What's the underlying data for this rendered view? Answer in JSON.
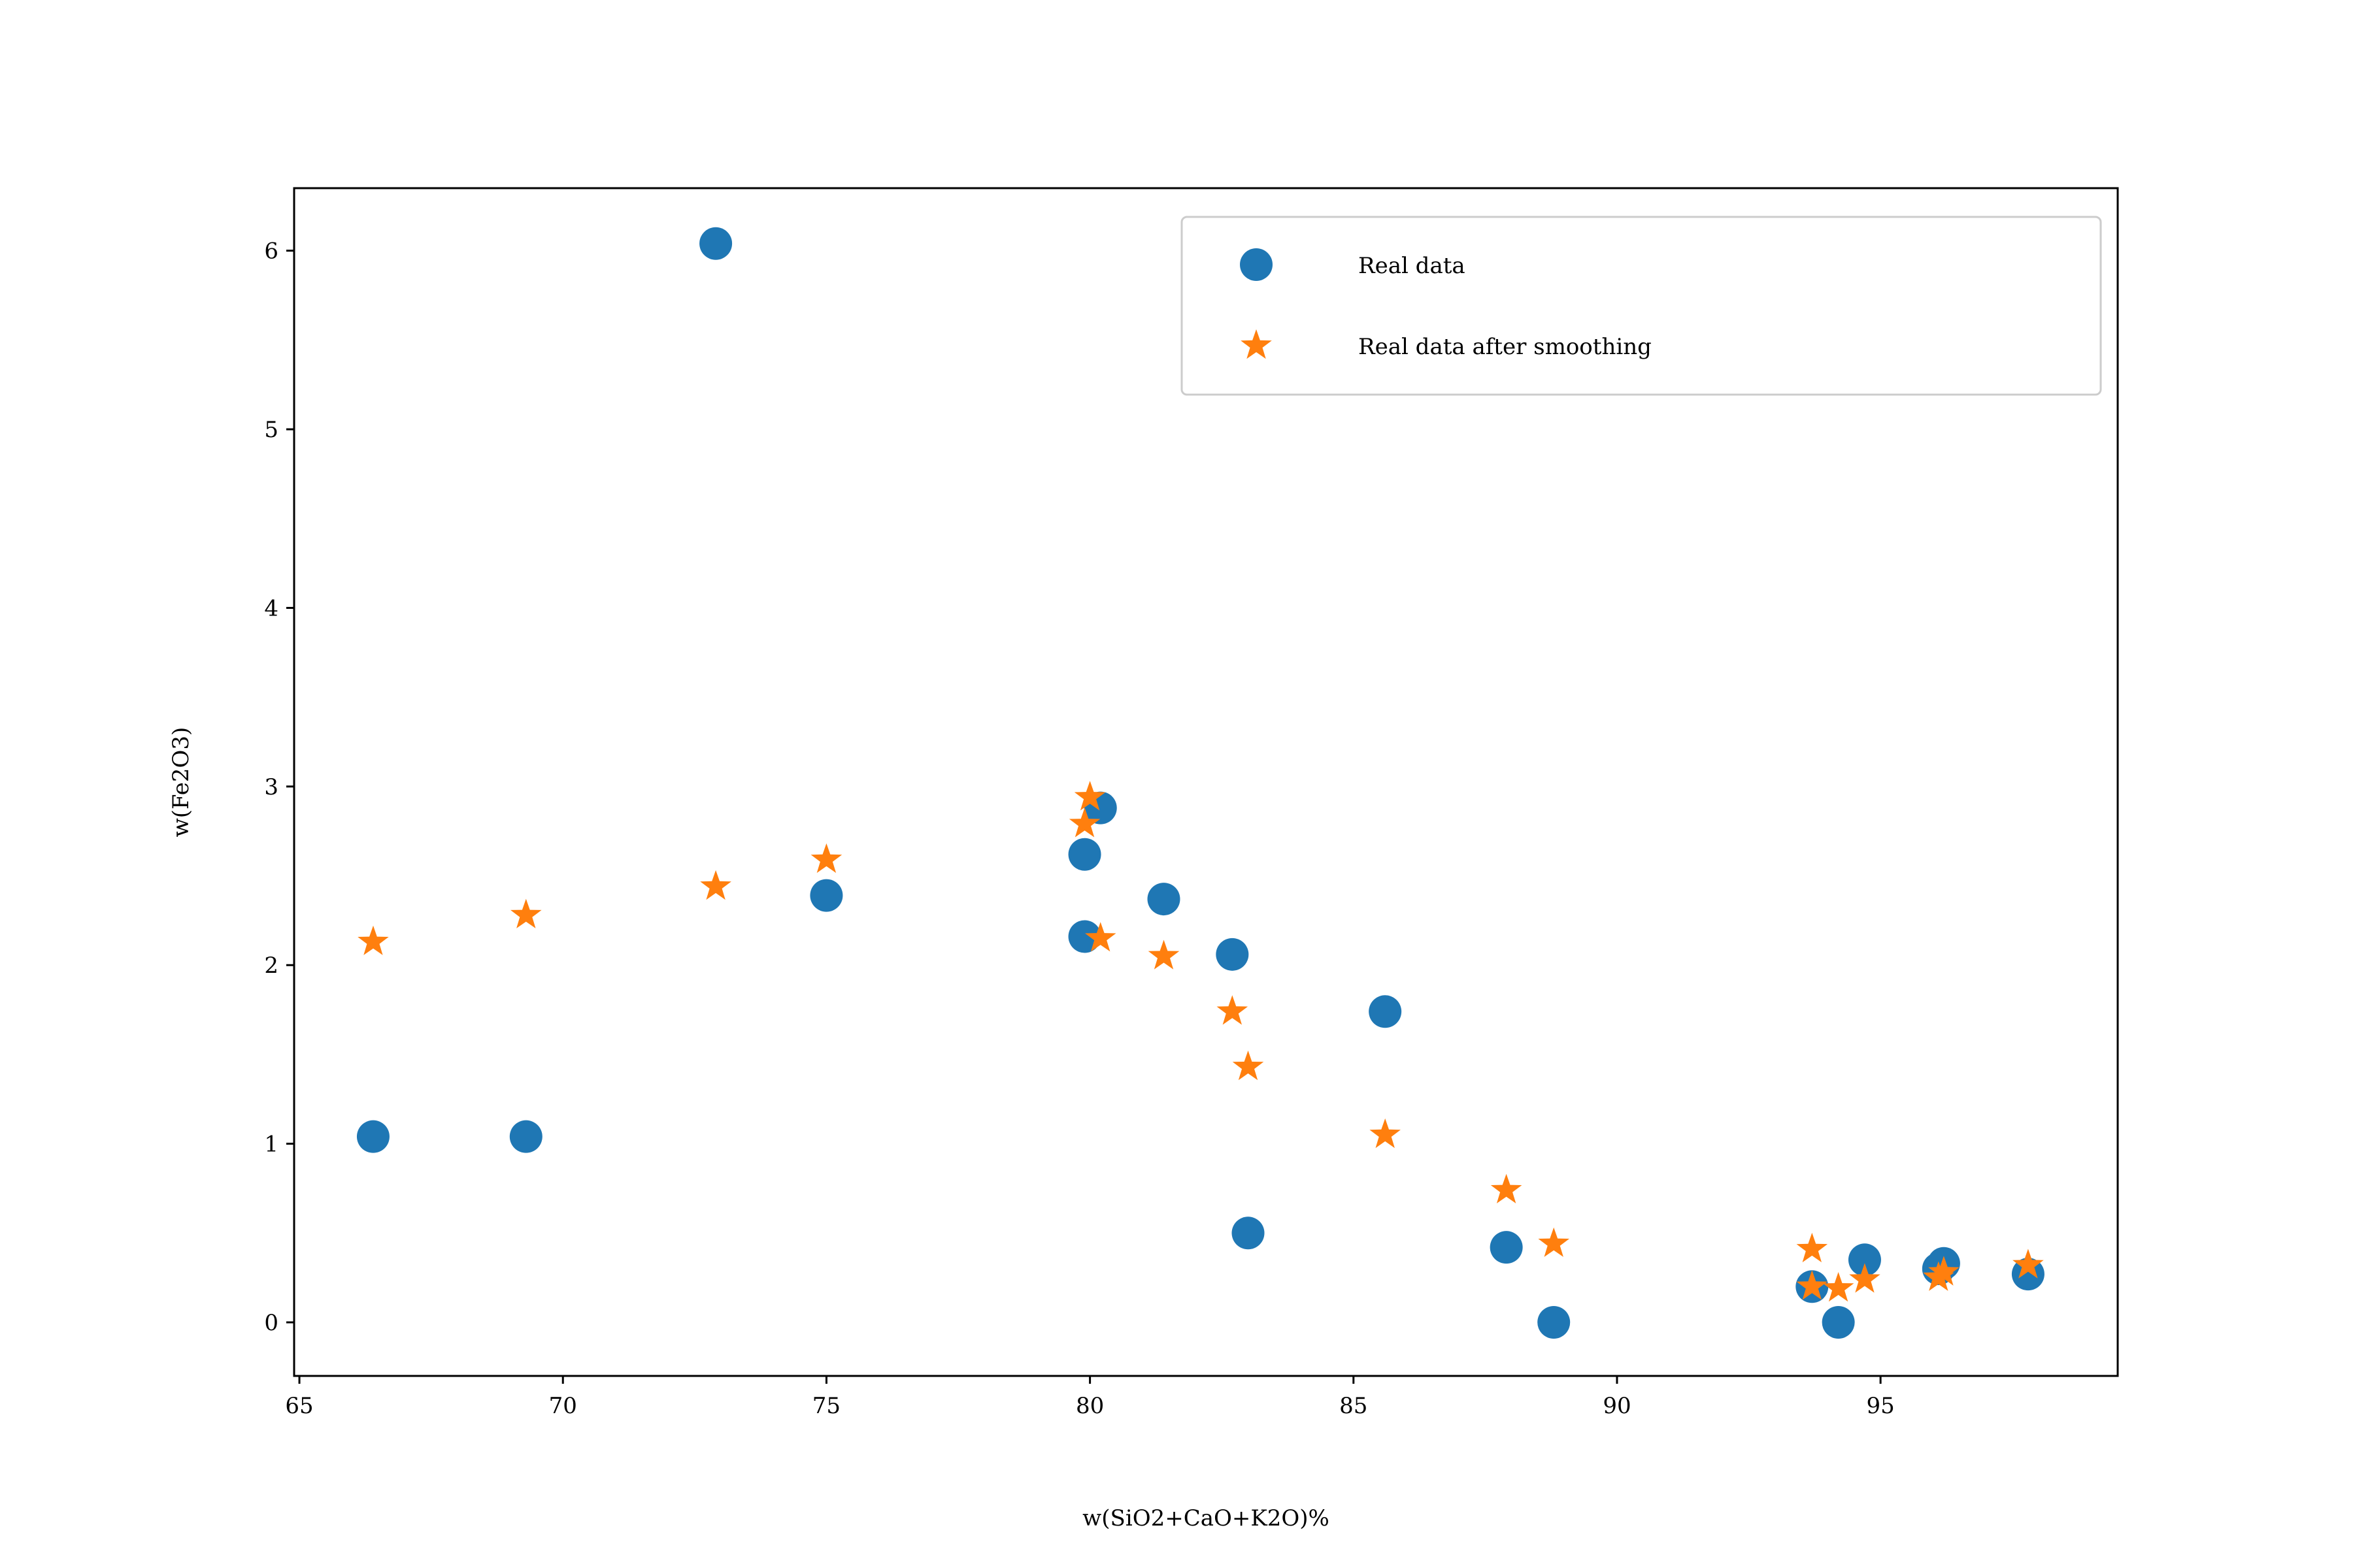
{
  "chart_data": {
    "type": "scatter",
    "title": "",
    "xlabel": "w(SiO2+CaO+K2O)%",
    "ylabel": "w(Fe2O3)",
    "xlim": [
      64.9,
      99.5
    ],
    "ylim": [
      -0.3,
      6.35
    ],
    "xticks": [
      65,
      70,
      75,
      80,
      85,
      90,
      95
    ],
    "yticks": [
      0,
      1,
      2,
      3,
      4,
      5,
      6
    ],
    "grid": false,
    "legend_position": "upper right",
    "series": [
      {
        "name": "Real data",
        "marker": "circle",
        "color": "#1f77b4",
        "points": [
          [
            66.4,
            1.04
          ],
          [
            69.3,
            1.04
          ],
          [
            72.9,
            6.04
          ],
          [
            75.0,
            2.39
          ],
          [
            79.9,
            2.62
          ],
          [
            80.2,
            2.88
          ],
          [
            79.9,
            2.16
          ],
          [
            81.4,
            2.37
          ],
          [
            82.7,
            2.06
          ],
          [
            83.0,
            0.5
          ],
          [
            85.6,
            1.74
          ],
          [
            87.9,
            0.42
          ],
          [
            88.8,
            0.0
          ],
          [
            93.7,
            0.2
          ],
          [
            94.2,
            0.0
          ],
          [
            94.7,
            0.35
          ],
          [
            96.1,
            0.3
          ],
          [
            96.2,
            0.33
          ],
          [
            97.8,
            0.27
          ]
        ]
      },
      {
        "name": "Real data after smoothing",
        "marker": "star",
        "color": "#ff7f0e",
        "points": [
          [
            66.4,
            2.13
          ],
          [
            69.3,
            2.28
          ],
          [
            72.9,
            2.44
          ],
          [
            75.0,
            2.59
          ],
          [
            79.9,
            2.79
          ],
          [
            80.0,
            2.94
          ],
          [
            80.2,
            2.15
          ],
          [
            81.4,
            2.05
          ],
          [
            82.7,
            1.74
          ],
          [
            83.0,
            1.43
          ],
          [
            85.6,
            1.05
          ],
          [
            87.9,
            0.74
          ],
          [
            88.8,
            0.44
          ],
          [
            93.7,
            0.41
          ],
          [
            93.7,
            0.2
          ],
          [
            94.2,
            0.19
          ],
          [
            94.7,
            0.24
          ],
          [
            96.1,
            0.25
          ],
          [
            96.2,
            0.28
          ],
          [
            97.8,
            0.32
          ]
        ]
      }
    ]
  }
}
